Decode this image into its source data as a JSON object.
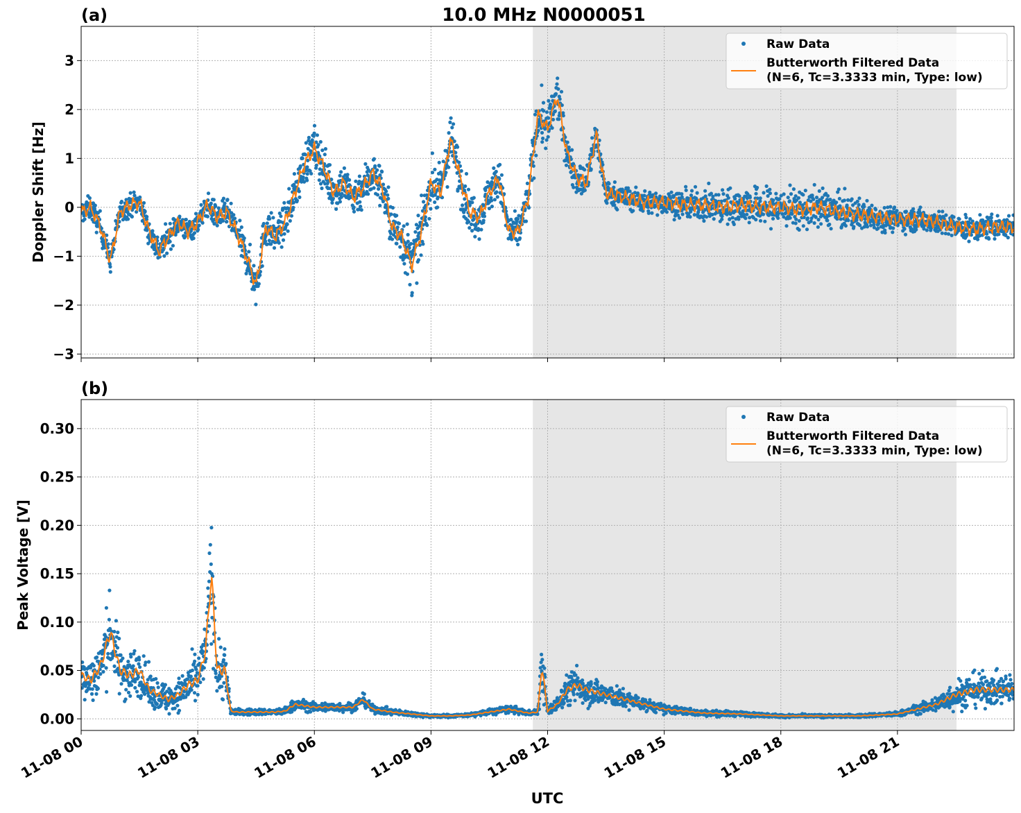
{
  "figure": {
    "title": "10.0 MHz N0000051",
    "xlabel": "UTC",
    "colors": {
      "raw": "#1f77b4",
      "filtered": "#ff7f0e",
      "shade": "#e6e6e6",
      "grid": "#b0b0b0"
    }
  },
  "chart_data": [
    {
      "type": "scatter",
      "panel": "(a)",
      "title": "10.0 MHz N0000051",
      "xlabel": "",
      "ylabel": "Doppler Shift [Hz]",
      "x_unit": "hours UTC on 11-08",
      "xlim": [
        0,
        24
      ],
      "ylim": [
        -3.08,
        3.7
      ],
      "yticks": [
        -3,
        -2,
        -1,
        0,
        1,
        2,
        3
      ],
      "yticklabels": [
        "−3",
        "−2",
        "−1",
        "0",
        "1",
        "2",
        "3"
      ],
      "xticks": [
        0,
        3,
        6,
        9,
        12,
        15,
        18,
        21
      ],
      "xticklabels": [
        "11-08 00",
        "11-08 03",
        "11-08 06",
        "11-08 09",
        "11-08 12",
        "11-08 15",
        "11-08 18",
        "11-08 21"
      ],
      "grid": true,
      "legend": "top-right",
      "shaded_interval": [
        11.62,
        22.52
      ],
      "series": [
        {
          "name": "Raw Data",
          "style": "points",
          "x": [
            0,
            0.25,
            0.5,
            0.75,
            1,
            1.25,
            1.5,
            1.75,
            2,
            2.25,
            2.5,
            2.75,
            3,
            3.25,
            3.5,
            3.75,
            4,
            4.25,
            4.5,
            4.75,
            5,
            5.25,
            5.5,
            5.75,
            6,
            6.25,
            6.5,
            6.75,
            7,
            7.25,
            7.5,
            7.75,
            8,
            8.25,
            8.5,
            8.75,
            9,
            9.25,
            9.5,
            9.75,
            10,
            10.25,
            10.5,
            10.75,
            11,
            11.25,
            11.5,
            11.75,
            12,
            12.25,
            12.5,
            12.75,
            13,
            13.25,
            13.5,
            13.75,
            14,
            14.25,
            14.5,
            14.75,
            15,
            15.5,
            16,
            16.5,
            17,
            17.5,
            18,
            18.5,
            19,
            19.5,
            20,
            20.5,
            21,
            21.5,
            22,
            22.5,
            23,
            23.5,
            24
          ],
          "y_center": [
            -0.1,
            0.0,
            -0.4,
            -1.1,
            -0.1,
            0.05,
            0.1,
            -0.5,
            -0.9,
            -0.6,
            -0.3,
            -0.5,
            -0.3,
            0.05,
            -0.2,
            -0.1,
            -0.5,
            -1.0,
            -1.6,
            -0.4,
            -0.6,
            -0.3,
            0.3,
            0.9,
            1.2,
            0.8,
            0.3,
            0.5,
            0.2,
            0.4,
            0.7,
            0.4,
            -0.4,
            -0.6,
            -1.2,
            -0.5,
            0.5,
            0.3,
            1.4,
            0.6,
            -0.1,
            -0.2,
            0.3,
            0.6,
            -0.5,
            -0.5,
            0.2,
            1.9,
            1.6,
            2.3,
            1.1,
            0.6,
            0.5,
            1.5,
            0.3,
            0.25,
            0.2,
            0.15,
            0.1,
            0.1,
            0.1,
            0.05,
            0.05,
            0.0,
            0.05,
            0.0,
            0.0,
            -0.05,
            0.0,
            -0.1,
            -0.15,
            -0.2,
            -0.25,
            -0.25,
            -0.3,
            -0.4,
            -0.45,
            -0.4,
            -0.4
          ],
          "y_spread": [
            0.3,
            0.3,
            0.35,
            0.3,
            0.3,
            0.3,
            0.3,
            0.35,
            0.35,
            0.35,
            0.3,
            0.3,
            0.3,
            0.3,
            0.35,
            0.35,
            0.4,
            0.45,
            0.55,
            0.5,
            0.45,
            0.45,
            0.5,
            0.55,
            0.6,
            0.55,
            0.5,
            0.5,
            0.5,
            0.55,
            0.55,
            0.55,
            0.6,
            0.65,
            0.8,
            0.65,
            0.6,
            0.6,
            0.7,
            0.65,
            0.55,
            0.5,
            0.5,
            0.5,
            0.45,
            0.45,
            0.5,
            0.7,
            0.6,
            0.6,
            0.45,
            0.4,
            0.45,
            0.45,
            0.35,
            0.3,
            0.3,
            0.3,
            0.3,
            0.3,
            0.3,
            0.35,
            0.4,
            0.45,
            0.45,
            0.5,
            0.5,
            0.5,
            0.5,
            0.45,
            0.4,
            0.35,
            0.3,
            0.3,
            0.3,
            0.3,
            0.3,
            0.3,
            0.3
          ]
        },
        {
          "name": "Butterworth Filtered Data\n(N=6, Tc=3.3333 min, Type: low)",
          "style": "line",
          "x": [
            0,
            0.25,
            0.5,
            0.75,
            1,
            1.25,
            1.5,
            1.75,
            2,
            2.25,
            2.5,
            2.75,
            3,
            3.25,
            3.5,
            3.75,
            4,
            4.25,
            4.5,
            4.75,
            5,
            5.25,
            5.5,
            5.75,
            6,
            6.25,
            6.5,
            6.75,
            7,
            7.25,
            7.5,
            7.75,
            8,
            8.25,
            8.5,
            8.75,
            9,
            9.25,
            9.5,
            9.75,
            10,
            10.25,
            10.5,
            10.75,
            11,
            11.25,
            11.5,
            11.75,
            12,
            12.25,
            12.5,
            12.75,
            13,
            13.25,
            13.5,
            13.75,
            14,
            14.25,
            14.5,
            14.75,
            15,
            15.5,
            16,
            16.5,
            17,
            17.5,
            18,
            18.5,
            19,
            19.5,
            20,
            20.5,
            21,
            21.5,
            22,
            22.5,
            23,
            23.5,
            24
          ],
          "y": [
            -0.1,
            0.0,
            -0.4,
            -1.1,
            -0.1,
            0.05,
            0.1,
            -0.5,
            -0.9,
            -0.6,
            -0.3,
            -0.5,
            -0.3,
            0.05,
            -0.2,
            -0.1,
            -0.5,
            -1.0,
            -1.6,
            -0.4,
            -0.6,
            -0.3,
            0.3,
            0.9,
            1.2,
            0.8,
            0.3,
            0.5,
            0.2,
            0.4,
            0.7,
            0.4,
            -0.4,
            -0.6,
            -1.2,
            -0.5,
            0.5,
            0.3,
            1.4,
            0.6,
            -0.1,
            -0.2,
            0.3,
            0.6,
            -0.5,
            -0.5,
            0.2,
            1.9,
            1.6,
            2.3,
            1.1,
            0.6,
            0.5,
            1.5,
            0.3,
            0.25,
            0.2,
            0.15,
            0.1,
            0.1,
            0.1,
            0.05,
            0.05,
            0.0,
            0.05,
            0.0,
            0.0,
            -0.05,
            0.0,
            -0.1,
            -0.15,
            -0.2,
            -0.25,
            -0.25,
            -0.3,
            -0.4,
            -0.45,
            -0.4,
            -0.4
          ]
        }
      ],
      "legend_entries": [
        {
          "marker": "point",
          "label": "Raw Data"
        },
        {
          "marker": "line",
          "label_lines": [
            "Butterworth Filtered Data",
            "(N=6, Tc=3.3333 min, Type: low)"
          ]
        }
      ]
    },
    {
      "type": "scatter",
      "panel": "(b)",
      "title": "",
      "xlabel": "UTC",
      "ylabel": "Peak Voltage [V]",
      "x_unit": "hours UTC on 11-08",
      "xlim": [
        0,
        24
      ],
      "ylim": [
        -0.012,
        0.33
      ],
      "yticks": [
        0.0,
        0.05,
        0.1,
        0.15,
        0.2,
        0.25,
        0.3
      ],
      "yticklabels": [
        "0.00",
        "0.05",
        "0.10",
        "0.15",
        "0.20",
        "0.25",
        "0.30"
      ],
      "xticks": [
        0,
        3,
        6,
        9,
        12,
        15,
        18,
        21
      ],
      "xticklabels": [
        "11-08 00",
        "11-08 03",
        "11-08 06",
        "11-08 09",
        "11-08 12",
        "11-08 15",
        "11-08 18",
        "11-08 21"
      ],
      "grid": true,
      "legend": "top-right",
      "shaded_interval": [
        11.62,
        22.52
      ],
      "series": [
        {
          "name": "Raw Data",
          "style": "points",
          "x": [
            0,
            0.25,
            0.5,
            0.75,
            1,
            1.25,
            1.5,
            1.75,
            2,
            2.25,
            2.5,
            2.75,
            3,
            3.2,
            3.35,
            3.5,
            3.7,
            3.85,
            4,
            4.5,
            5,
            5.25,
            5.5,
            6,
            6.5,
            7,
            7.25,
            7.5,
            8,
            8.5,
            9,
            9.5,
            10,
            10.5,
            11,
            11.5,
            11.75,
            11.85,
            12,
            12.25,
            12.5,
            12.75,
            13,
            13.5,
            14,
            14.5,
            15,
            16,
            17,
            18,
            19,
            20,
            21,
            21.5,
            22,
            22.5,
            23,
            23.5,
            24
          ],
          "y_center": [
            0.045,
            0.04,
            0.055,
            0.09,
            0.05,
            0.045,
            0.05,
            0.03,
            0.025,
            0.02,
            0.025,
            0.035,
            0.04,
            0.07,
            0.15,
            0.05,
            0.05,
            0.008,
            0.007,
            0.007,
            0.007,
            0.008,
            0.015,
            0.012,
            0.012,
            0.012,
            0.02,
            0.01,
            0.007,
            0.005,
            0.003,
            0.003,
            0.004,
            0.007,
            0.01,
            0.006,
            0.007,
            0.055,
            0.008,
            0.015,
            0.03,
            0.035,
            0.03,
            0.025,
            0.02,
            0.015,
            0.01,
            0.006,
            0.005,
            0.003,
            0.003,
            0.003,
            0.005,
            0.01,
            0.015,
            0.025,
            0.03,
            0.03,
            0.03
          ],
          "y_spread": [
            0.03,
            0.03,
            0.04,
            0.05,
            0.035,
            0.035,
            0.03,
            0.025,
            0.02,
            0.02,
            0.02,
            0.03,
            0.03,
            0.04,
            0.08,
            0.04,
            0.04,
            0.004,
            0.004,
            0.004,
            0.004,
            0.005,
            0.008,
            0.006,
            0.006,
            0.006,
            0.008,
            0.005,
            0.004,
            0.003,
            0.002,
            0.002,
            0.002,
            0.004,
            0.005,
            0.003,
            0.004,
            0.04,
            0.005,
            0.01,
            0.02,
            0.025,
            0.02,
            0.015,
            0.012,
            0.008,
            0.006,
            0.004,
            0.003,
            0.002,
            0.002,
            0.002,
            0.003,
            0.006,
            0.01,
            0.02,
            0.022,
            0.02,
            0.02
          ]
        },
        {
          "name": "Butterworth Filtered Data\n(N=6, Tc=3.3333 min, Type: low)",
          "style": "line",
          "x": [
            0,
            0.25,
            0.5,
            0.75,
            1,
            1.25,
            1.5,
            1.75,
            2,
            2.25,
            2.5,
            2.75,
            3,
            3.2,
            3.35,
            3.5,
            3.7,
            3.85,
            4,
            4.5,
            5,
            5.25,
            5.5,
            6,
            6.5,
            7,
            7.25,
            7.5,
            8,
            8.5,
            9,
            9.5,
            10,
            10.5,
            11,
            11.5,
            11.75,
            11.85,
            12,
            12.25,
            12.5,
            12.75,
            13,
            13.5,
            14,
            14.5,
            15,
            16,
            17,
            18,
            19,
            20,
            21,
            21.5,
            22,
            22.5,
            23,
            23.5,
            24
          ],
          "y": [
            0.045,
            0.04,
            0.055,
            0.09,
            0.05,
            0.045,
            0.05,
            0.03,
            0.025,
            0.02,
            0.025,
            0.035,
            0.04,
            0.07,
            0.15,
            0.05,
            0.05,
            0.008,
            0.007,
            0.007,
            0.007,
            0.008,
            0.015,
            0.012,
            0.012,
            0.012,
            0.02,
            0.01,
            0.007,
            0.005,
            0.003,
            0.003,
            0.004,
            0.007,
            0.01,
            0.006,
            0.007,
            0.055,
            0.008,
            0.015,
            0.03,
            0.035,
            0.03,
            0.025,
            0.02,
            0.015,
            0.01,
            0.006,
            0.005,
            0.003,
            0.003,
            0.003,
            0.005,
            0.01,
            0.015,
            0.025,
            0.03,
            0.03,
            0.03
          ]
        }
      ],
      "legend_entries": [
        {
          "marker": "point",
          "label": "Raw Data"
        },
        {
          "marker": "line",
          "label_lines": [
            "Butterworth Filtered Data",
            "(N=6, Tc=3.3333 min, Type: low)"
          ]
        }
      ]
    }
  ]
}
